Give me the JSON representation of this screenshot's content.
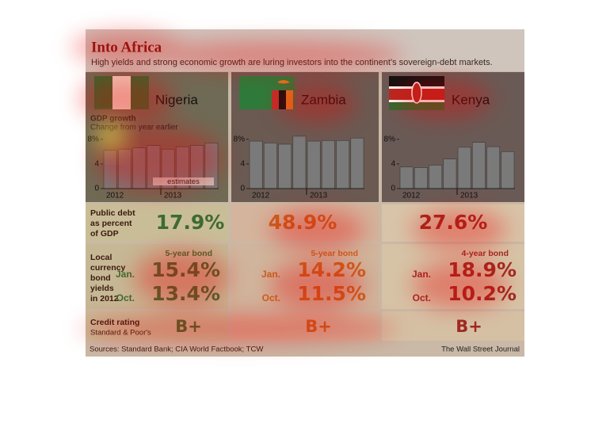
{
  "header": {
    "title": "Into Africa",
    "subtitle": "High yields and strong economic growth are luring investors into the continent’s sovereign-debt markets."
  },
  "chart_data": [
    {
      "type": "bar",
      "title": "Nigeria",
      "color": "#7a7a7a",
      "axis_label": "GDP growth",
      "axis_sublabel": "Change from year earlier",
      "annotation": "estimates",
      "categories": [
        "2012",
        null,
        null,
        null,
        "2013",
        null,
        null,
        null
      ],
      "values": [
        6.2,
        6.4,
        6.6,
        7.0,
        6.4,
        6.8,
        7.0,
        7.4
      ],
      "ylim": [
        0,
        9
      ],
      "yticks": [
        0,
        4,
        {
          "value": 8,
          "label": "8%"
        }
      ]
    },
    {
      "type": "bar",
      "title": "Zambia",
      "color": "#7a7a7a",
      "categories": [
        "2012",
        null,
        null,
        null,
        "2013",
        null,
        null,
        null
      ],
      "values": [
        7.7,
        7.4,
        7.2,
        8.5,
        7.7,
        7.8,
        7.8,
        8.2
      ],
      "ylim": [
        0,
        9
      ],
      "yticks": [
        0,
        4,
        {
          "value": 8,
          "label": "8%"
        }
      ]
    },
    {
      "type": "bar",
      "title": "Kenya",
      "color": "#7a7a7a",
      "categories": [
        "2012",
        null,
        null,
        null,
        "2013",
        null,
        null,
        null
      ],
      "values": [
        3.5,
        3.4,
        3.8,
        4.8,
        6.7,
        7.5,
        6.8,
        6.0
      ],
      "ylim": [
        0,
        9
      ],
      "yticks": [
        0,
        4,
        {
          "value": 8,
          "label": "8%"
        }
      ]
    }
  ],
  "table": {
    "debt_label": [
      "Public debt",
      "as percent",
      "of GDP"
    ],
    "yield_label": [
      "Local",
      "currency",
      "bond",
      "yields",
      "in 2012"
    ],
    "rating_label": "Credit rating",
    "rating_source": "Standard & Poor's",
    "jan": "Jan.",
    "oct": "Oct.",
    "countries": [
      {
        "color": "#3d6b2f",
        "debt": "17.9%",
        "bond": "5-year bond",
        "jan": "15.4%",
        "oct": "13.4%",
        "rating": "B+"
      },
      {
        "color": "#c8641e",
        "debt": "48.9%",
        "bond": "5-year bond",
        "jan": "14.2%",
        "oct": "11.5%",
        "rating": "B+"
      },
      {
        "color": "#9e2a22",
        "debt": "27.6%",
        "bond": "4-year bond",
        "jan": "18.9%",
        "oct": "10.2%",
        "rating": "B+"
      }
    ]
  },
  "footer": {
    "source": "Sources: Standard Bank; CIA World Factbook; TCW",
    "credit": "The Wall Street Journal"
  }
}
